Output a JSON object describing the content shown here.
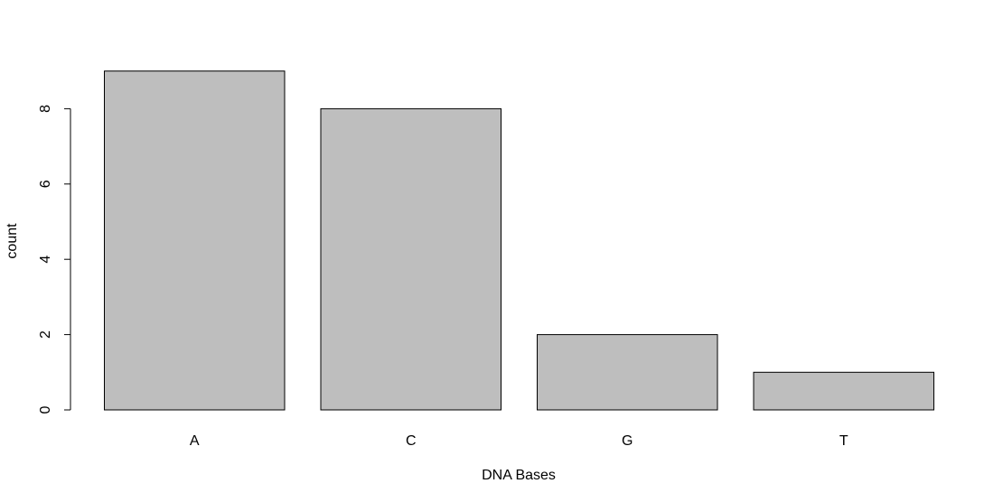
{
  "chart_data": {
    "type": "bar",
    "categories": [
      "A",
      "C",
      "G",
      "T"
    ],
    "values": [
      9,
      8,
      2,
      1
    ],
    "title": "",
    "xlabel": "DNA Bases",
    "ylabel": "count",
    "ylim": [
      0,
      9
    ],
    "yticks": [
      0,
      2,
      4,
      6,
      8
    ],
    "grid": false,
    "legend": "none",
    "bar_color": "#bebebe",
    "bar_border_color": "#000000"
  }
}
